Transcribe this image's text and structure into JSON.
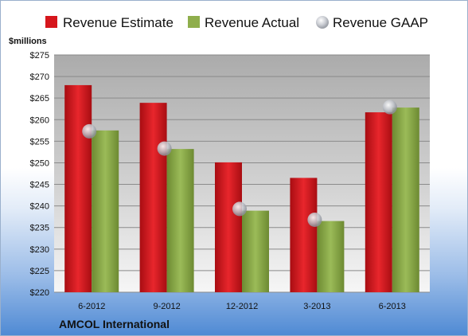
{
  "chart_data": {
    "type": "bar",
    "ylabel": "$millions",
    "company": "AMCOL International",
    "categories": [
      "6-2012",
      "9-2012",
      "12-2012",
      "3-2013",
      "6-2013"
    ],
    "y_ticks": [
      "$220",
      "$225",
      "$230",
      "$235",
      "$240",
      "$245",
      "$250",
      "$255",
      "$260",
      "$265",
      "$270",
      "$275"
    ],
    "ylim": [
      220,
      275
    ],
    "legend_position": "top",
    "grid": true,
    "series": [
      {
        "name": "Revenue Estimate",
        "type": "bar",
        "color": "#d6161c",
        "values": [
          268.0,
          263.9,
          250.1,
          246.5,
          261.7
        ]
      },
      {
        "name": "Revenue Actual",
        "type": "bar",
        "color": "#8fae4c",
        "values": [
          257.5,
          253.2,
          238.9,
          236.5,
          262.8
        ]
      },
      {
        "name": "Revenue GAAP",
        "type": "marker",
        "color": "#b9bcc4",
        "values": [
          257.3,
          253.3,
          239.3,
          236.8,
          262.9
        ]
      }
    ]
  }
}
